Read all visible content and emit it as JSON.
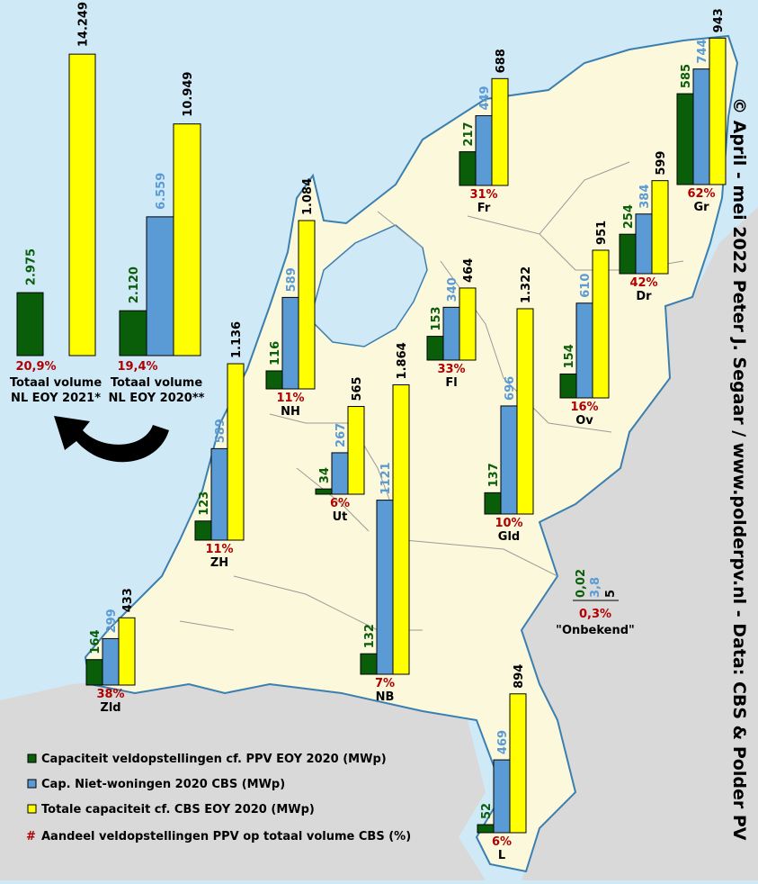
{
  "chart_data": {
    "type": "bar",
    "series": [
      {
        "name": "Capaciteit veldopstellingen cf. PPV EOY 2020 (MWp)",
        "color": "#0a5e0a"
      },
      {
        "name": "Cap. Niet-woningen 2020 CBS (MWp)",
        "color": "#5b9bd5"
      },
      {
        "name": "Totale capaciteit cf. CBS EOY 2020 (MWp)",
        "color": "#ffff00"
      }
    ],
    "share_legend": "Aandeel veldopstellingen PPV op totaal volume CBS (%)",
    "share_marker": "#",
    "share_color": "#b00000",
    "provinces": [
      {
        "code": "Fr",
        "values": [
          217,
          449,
          688
        ],
        "labels": [
          "217",
          "449",
          "688"
        ],
        "share": "31%"
      },
      {
        "code": "Gr",
        "values": [
          585,
          744,
          943
        ],
        "labels": [
          "585",
          "744",
          "943"
        ],
        "share": "62%"
      },
      {
        "code": "Dr",
        "values": [
          254,
          384,
          599
        ],
        "labels": [
          "254",
          "384",
          "599"
        ],
        "share": "42%"
      },
      {
        "code": "NH",
        "values": [
          116,
          589,
          1084
        ],
        "labels": [
          "116",
          "589",
          "1.084"
        ],
        "share": "11%"
      },
      {
        "code": "Fl",
        "values": [
          153,
          340,
          464
        ],
        "labels": [
          "153",
          "340",
          "464"
        ],
        "share": "33%"
      },
      {
        "code": "Ov",
        "values": [
          154,
          610,
          951
        ],
        "labels": [
          "154",
          "610",
          "951"
        ],
        "share": "16%"
      },
      {
        "code": "Ut",
        "values": [
          34,
          267,
          565
        ],
        "labels": [
          "34",
          "267",
          "565"
        ],
        "share": "6%"
      },
      {
        "code": "ZH",
        "values": [
          123,
          589,
          1136
        ],
        "labels": [
          "123",
          "589",
          "1.136"
        ],
        "share": "11%"
      },
      {
        "code": "Gld",
        "values": [
          137,
          696,
          1322
        ],
        "labels": [
          "137",
          "696",
          "1.322"
        ],
        "share": "10%"
      },
      {
        "code": "NB",
        "values": [
          132,
          1121,
          1864
        ],
        "labels": [
          "132",
          "1121",
          "1.864"
        ],
        "share": "7%"
      },
      {
        "code": "Zld",
        "values": [
          164,
          299,
          433
        ],
        "labels": [
          "164",
          "299",
          "433"
        ],
        "share": "38%"
      },
      {
        "code": "L",
        "values": [
          52,
          469,
          894
        ],
        "labels": [
          "52",
          "469",
          "894"
        ],
        "share": "6%"
      }
    ],
    "totals": [
      {
        "line1": "Totaal volume",
        "line2": "NL EOY 2021*",
        "values": [
          2975,
          null,
          14249
        ],
        "labels": [
          "2.975",
          "",
          "14.249"
        ],
        "share": "20,9%"
      },
      {
        "line1": "Totaal volume",
        "line2": "NL EOY 2020**",
        "values": [
          2120,
          6559,
          10949
        ],
        "labels": [
          "2.120",
          "6.559",
          "10.949"
        ],
        "share": "19,4%"
      }
    ],
    "unknown": {
      "label": "\"Onbekend\"",
      "labels": [
        "0,02",
        "3,8",
        "5"
      ],
      "share": "0,3%"
    }
  },
  "credit": "© April - mei 2022 Peter J. Segaar / www.polderpv.nl - Data: CBS & Polder PV"
}
